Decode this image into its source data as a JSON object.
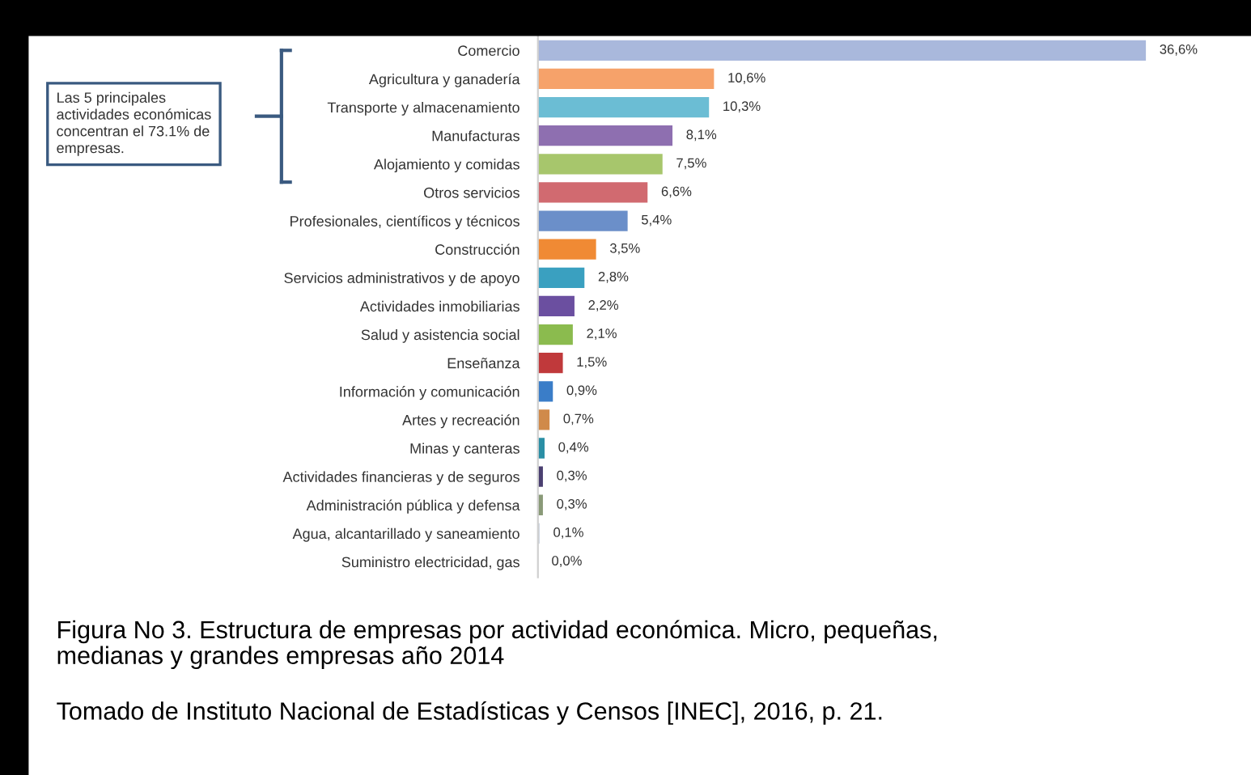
{
  "chart_data": {
    "type": "bar",
    "orientation": "horizontal",
    "categories": [
      "Comercio",
      "Agricultura y ganadería",
      "Transporte y almacenamiento",
      "Manufacturas",
      "Alojamiento y comidas",
      "Otros servicios",
      "Profesionales, científicos y técnicos",
      "Construcción",
      "Servicios administrativos y de apoyo",
      "Actividades inmobiliarias",
      "Salud y asistencia social",
      "Enseñanza",
      "Información y comunicación",
      "Artes y recreación",
      "Minas y canteras",
      "Actividades financieras y de seguros",
      "Administración pública y defensa",
      "Agua, alcantarillado y saneamiento",
      "Suministro electricidad, gas"
    ],
    "values": [
      36.6,
      10.6,
      10.3,
      8.1,
      7.5,
      6.6,
      5.4,
      3.5,
      2.8,
      2.2,
      2.1,
      1.5,
      0.9,
      0.7,
      0.4,
      0.3,
      0.3,
      0.1,
      0.0
    ],
    "value_labels": [
      "36,6%",
      "10,6%",
      "10,3%",
      "8,1%",
      "7,5%",
      "6,6%",
      "5,4%",
      "3,5%",
      "2,8%",
      "2,2%",
      "2,1%",
      "1,5%",
      "0,9%",
      "0,7%",
      "0,4%",
      "0,3%",
      "0,3%",
      "0,1%",
      "0,0%"
    ],
    "colors": [
      "#a9b8dc",
      "#f6a26a",
      "#6bbdd4",
      "#8e6fb0",
      "#a7c66c",
      "#d16a70",
      "#6b8fc9",
      "#f08a34",
      "#3aa0c0",
      "#6b4fa0",
      "#8bbb4e",
      "#c0393b",
      "#3a7dc8",
      "#d08a4a",
      "#2a8fa5",
      "#4a3f70",
      "#8a9a78",
      "#c8d0dc",
      "#c0c4cc"
    ],
    "annotations": [
      "Las 5 principales\nactividades económicas\nconcentran el 73.1% de\nempresas.",
      "Figura No 3. Estructura de empresas por actividad económica. Micro, pequeñas,\nmedianas y grandes empresas año 2014",
      "Tomado de Instituto Nacional de Estadísticas y Censos [INEC], 2016, p. 21."
    ],
    "grid": false,
    "legend": false
  }
}
